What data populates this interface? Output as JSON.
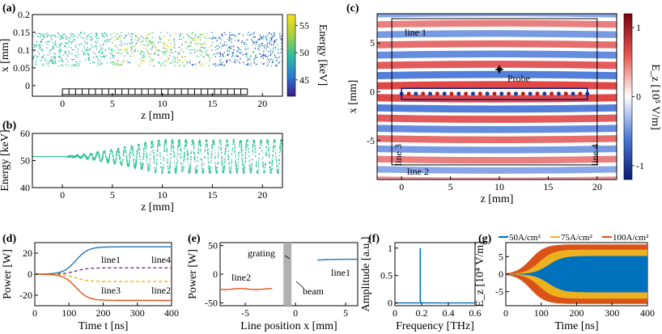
{
  "chart_data": [
    {
      "panel": "(a)",
      "type": "scatter",
      "xlabel": "z [mm]",
      "ylabel": "x [mm]",
      "xlim": [
        -3,
        22
      ],
      "ylim": [
        -0.03,
        0.2
      ],
      "xticks": [
        "0",
        "5",
        "10",
        "15",
        "20"
      ],
      "yticks": [
        "0",
        "0.05",
        "0.1",
        "0.15",
        "0.2"
      ],
      "colorbar": {
        "label": "Energy [keV]",
        "range": [
          42,
          57
        ],
        "ticks": [
          "45",
          "50",
          "55"
        ]
      },
      "grating": {
        "z_start": 0,
        "z_end": 18.5,
        "teeth": 28
      }
    },
    {
      "panel": "(b)",
      "type": "scatter",
      "xlabel": "z [mm]",
      "ylabel": "Energy [keV]",
      "xlim": [
        -3,
        22
      ],
      "ylim": [
        40,
        60
      ],
      "xticks": [
        "0",
        "5",
        "10",
        "15",
        "20"
      ],
      "yticks": [
        "40",
        "50",
        "60"
      ],
      "baseline_keV": 51.5,
      "max_amplitude_keV": 6
    },
    {
      "panel": "(c)",
      "type": "heatmap",
      "xlabel": "z [mm]",
      "ylabel": "x [mm]",
      "xlim": [
        -2.5,
        22
      ],
      "ylim": [
        -9,
        8
      ],
      "xticks": [
        "0",
        "5",
        "10",
        "15",
        "20"
      ],
      "yticks": [
        "5",
        "0",
        "-5"
      ],
      "colorbar": {
        "label": "E_z [10⁵ V/m]",
        "range": [
          -1.2,
          1.2
        ],
        "ticks": [
          "1",
          "0",
          "-1"
        ]
      },
      "annotations": [
        "line 1",
        "line 2",
        "line 3",
        "line 4",
        "Probe"
      ],
      "probe": {
        "z": 10,
        "x": 2.3
      },
      "box": {
        "z": [
          -1,
          20
        ],
        "x": [
          -7.5,
          7.5
        ]
      }
    },
    {
      "panel": "(d)",
      "type": "line",
      "xlabel": "Time t [ns]",
      "ylabel": "Power [W]",
      "xlim": [
        0,
        400
      ],
      "ylim": [
        -30,
        30
      ],
      "xticks": [
        "0",
        "100",
        "200",
        "300",
        "400"
      ],
      "yticks": [
        "20",
        "0",
        "-20"
      ],
      "series": [
        {
          "name": "line1",
          "final": 26,
          "style": "solid",
          "color": "#1f77b4"
        },
        {
          "name": "line4",
          "final": 6,
          "style": "dashed",
          "color": "#7b2d8e"
        },
        {
          "name": "line3",
          "final": -7,
          "style": "dashed",
          "color": "#f0b400"
        },
        {
          "name": "line2",
          "final": -25,
          "style": "solid",
          "color": "#d95319"
        }
      ]
    },
    {
      "panel": "(e)",
      "type": "line",
      "xlabel": "Line position x [mm]",
      "ylabel": "Power [W]",
      "xlim": [
        -7.5,
        6.2
      ],
      "ylim": [
        -55,
        55
      ],
      "xticks": [
        "-5",
        "0",
        "5"
      ],
      "yticks": [
        "50",
        "0",
        "-50"
      ],
      "series": [
        {
          "name": "line2",
          "x": [
            -7.5,
            -2.3
          ],
          "value": -26,
          "color": "#d95319"
        },
        {
          "name": "line1",
          "x": [
            2.2,
            6.2
          ],
          "value": 26,
          "color": "#1f77b4"
        }
      ],
      "annotations": [
        "grating",
        "beam"
      ]
    },
    {
      "panel": "(f)",
      "type": "line",
      "xlabel": "Frequency [THz]",
      "ylabel": "Amplitude [a.u.]",
      "xlim": [
        0,
        0.6
      ],
      "ylim": [
        -0.05,
        1.1
      ],
      "xticks": [
        "0",
        "0.2",
        "0.4",
        "0.6"
      ],
      "yticks": [
        "1",
        "0.5",
        "0"
      ],
      "peak": {
        "frequency": 0.19,
        "amplitude": 1
      }
    },
    {
      "panel": "(g)",
      "type": "area",
      "xlabel": "Time [ns]",
      "ylabel": "E_z [10⁴ V/m]",
      "xlim": [
        0,
        400
      ],
      "ylim": [
        -9,
        9
      ],
      "xticks": [
        "0",
        "100",
        "200",
        "300",
        "400"
      ],
      "yticks": [
        "5",
        "0",
        "-5"
      ],
      "series": [
        {
          "name": "100A/cm²",
          "color": "#d95319",
          "amplitude": 8.5
        },
        {
          "name": "75A/cm²",
          "color": "#edb120",
          "amplitude": 7.0
        },
        {
          "name": "50A/cm²",
          "color": "#0072bd",
          "amplitude": 5.2
        }
      ]
    }
  ],
  "labels": {
    "pa": "(a)",
    "pb": "(b)",
    "pc": "(c)",
    "pd": "(d)",
    "pe": "(e)",
    "pf": "(f)",
    "pg": "(g)",
    "line1": "line 1",
    "line2": "line 2",
    "line3": "line 3",
    "line4": "line 4",
    "probe": "Probe",
    "d_line1": "line1",
    "d_line4": "line4",
    "d_line3": "line3",
    "d_line2": "line2",
    "e_line2": "line2",
    "e_line1": "line1",
    "e_grating": "grating",
    "e_beam": "beam",
    "g_leg1": "50A/cm²",
    "g_leg2": "75A/cm²",
    "g_leg3": "100A/cm²"
  }
}
